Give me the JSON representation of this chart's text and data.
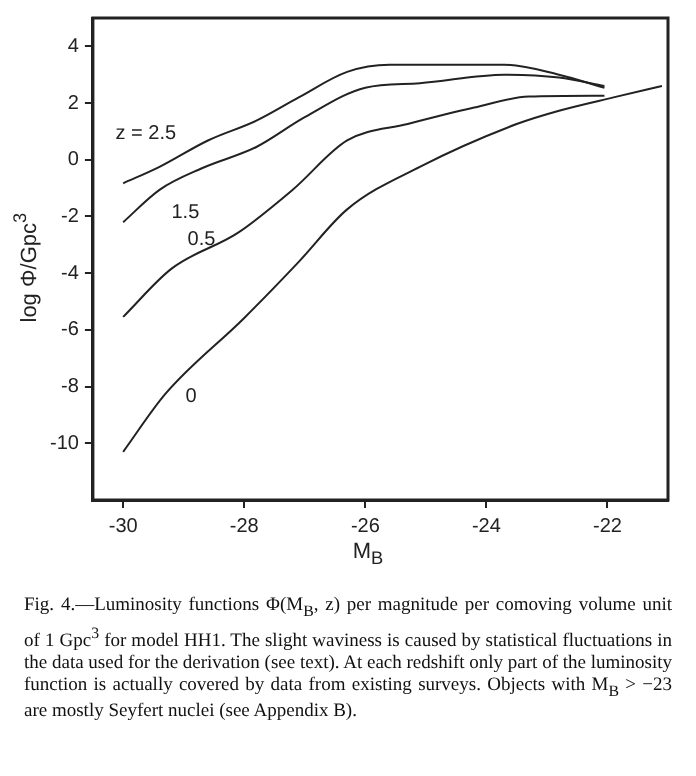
{
  "chart_data": {
    "type": "line",
    "xlabel": "M$_{B}$",
    "ylabel": "log Φ/Gpc$^{3}$",
    "xlim": [
      -30.5,
      -21
    ],
    "xticks": [
      -30,
      -28,
      -26,
      -24,
      -22
    ],
    "ylim": [
      -12,
      5
    ],
    "yticks": [
      -10,
      -8,
      -6,
      -4,
      -2,
      0,
      2,
      4
    ],
    "grid": false,
    "legend": false,
    "marker": "none",
    "line_style": "solid",
    "series": [
      {
        "name": "z = 2.5",
        "color": "#222222",
        "x": [
          -30.0,
          -29.4,
          -28.6,
          -27.8,
          -27.1,
          -26.3,
          -25.6,
          -23.7,
          -22.8,
          -22.05
        ],
        "values": [
          -0.83,
          -0.25,
          0.68,
          1.38,
          2.2,
          3.1,
          3.35,
          3.35,
          3.0,
          2.54
        ]
      },
      {
        "name": "1.5",
        "color": "#222222",
        "x": [
          -30.0,
          -29.4,
          -28.7,
          -27.8,
          -27.0,
          -26.0,
          -25.1,
          -23.7,
          -22.8,
          -22.05
        ],
        "values": [
          -2.2,
          -1.06,
          -0.3,
          0.45,
          1.5,
          2.54,
          2.7,
          3.0,
          2.9,
          2.6
        ]
      },
      {
        "name": "0.5",
        "color": "#222222",
        "x": [
          -30.0,
          -29.2,
          -28.1,
          -27.2,
          -26.3,
          -25.3,
          -24.2,
          -23.3,
          -22.05
        ],
        "values": [
          -5.54,
          -3.84,
          -2.57,
          -1.06,
          0.68,
          1.26,
          1.84,
          2.23,
          2.26
        ]
      },
      {
        "name": "0",
        "color": "#222222",
        "x": [
          -30.0,
          -29.3,
          -28.0,
          -27.1,
          -26.3,
          -25.1,
          -23.5,
          -22.8,
          -21.9,
          -21.1
        ],
        "values": [
          -10.3,
          -8.25,
          -5.58,
          -3.6,
          -1.75,
          -0.25,
          1.26,
          1.73,
          2.2,
          2.6
        ]
      }
    ],
    "annotations": [
      "Fig. 4.—Luminosity functions Φ(M$_{B}$, z) per magnitude per comoving volume unit of 1 Gpc$^{3}$ for model HH1. The slight waviness is caused by statistical fluctuations in the data used for the derivation (see text). At each redshift only part of the luminosity function is actually covered by data from existing surveys. Objects with M$_{B}$ > −23 are mostly Seyfert nuclei (see Appendix B)."
    ]
  }
}
